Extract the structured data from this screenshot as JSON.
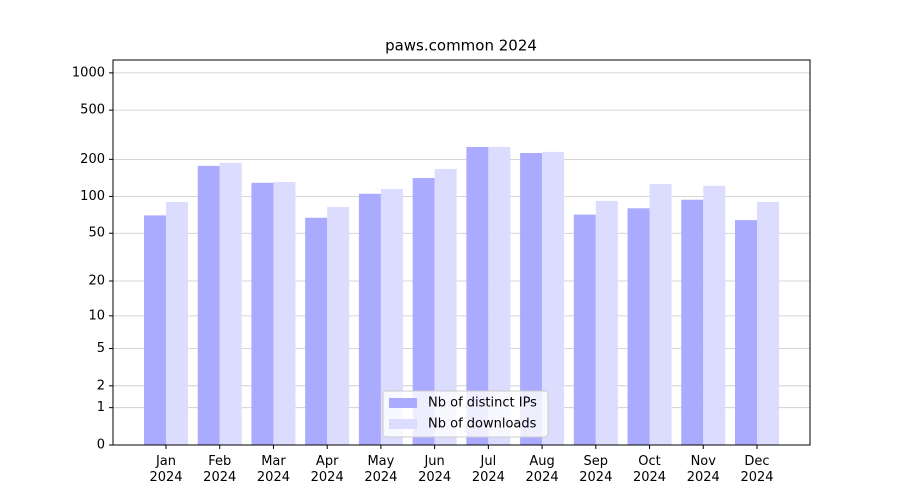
{
  "chart_data": {
    "type": "bar",
    "title": "paws.common 2024",
    "categories": [
      "Jan\n2024",
      "Feb\n2024",
      "Mar\n2024",
      "Apr\n2024",
      "May\n2024",
      "Jun\n2024",
      "Jul\n2024",
      "Aug\n2024",
      "Sep\n2024",
      "Oct\n2024",
      "Nov\n2024",
      "Dec\n2024"
    ],
    "series": [
      {
        "name": "Nb of distinct IPs",
        "color": "#aaaaff",
        "values": [
          70,
          177,
          129,
          67,
          105,
          141,
          252,
          225,
          71,
          80,
          94,
          64
        ]
      },
      {
        "name": "Nb of downloads",
        "color": "#dcdcff",
        "values": [
          90,
          187,
          131,
          82,
          115,
          167,
          252,
          230,
          92,
          126,
          122,
          90
        ]
      }
    ],
    "yscale": "log1p",
    "ylim": [
      0,
      1270
    ],
    "yticks": [
      0,
      1,
      2,
      5,
      10,
      20,
      50,
      100,
      200,
      500,
      1000
    ],
    "grid": true,
    "legend": "lower center"
  }
}
